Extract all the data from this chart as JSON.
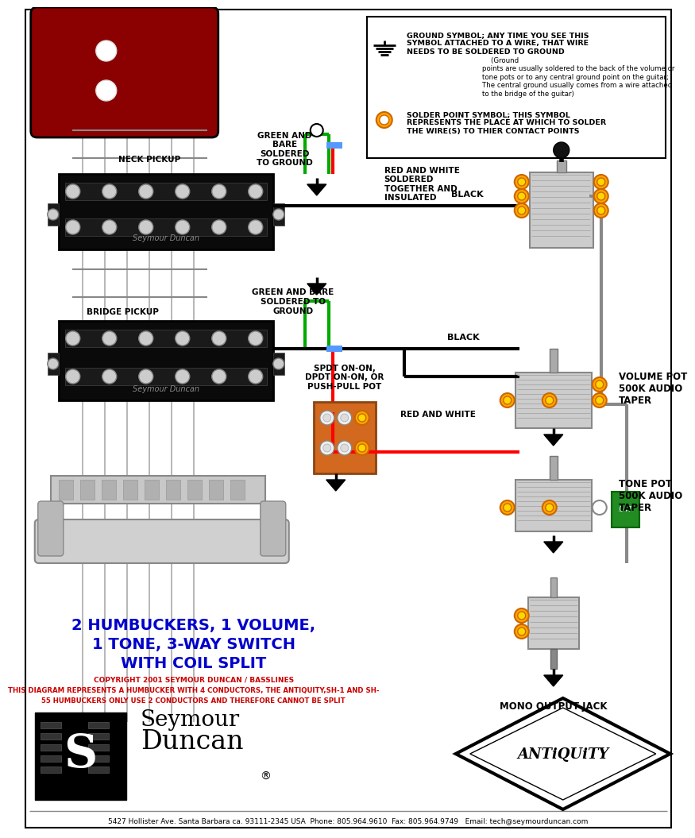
{
  "bg_color": "#ffffff",
  "title_line1": "2 HUMBUCKERS, 1 VOLUME,",
  "title_line2": "1 TONE, 3-WAY SWITCH",
  "title_line3": "WITH COIL SPLIT",
  "title_color": "#0000cc",
  "copyright_text": "COPYRIGHT 2001 SEYMOUR DUNCAN / BASSLINES",
  "copyright_color": "#cc0000",
  "warning_text1": "THIS DIAGRAM REPRESENTS A HUMBUCKER WITH 4 CONDUCTORS, THE ANTIQUITY,SH-1 AND SH-",
  "warning_text2": "55 HUMBUCKERS ONLY USE 2 CONDUCTORS AND THEREFORE CANNOT BE SPLIT",
  "warning_color": "#cc0000",
  "footer_text": "5427 Hollister Ave. Santa Barbara ca. 93111-2345 USA  Phone: 805.964.9610  Fax: 805.964.9749   Email: tech@seymourduncan.com",
  "footer_color": "#000000",
  "label_neck": "NECK PICKUP",
  "label_bridge": "BRIDGE PICKUP",
  "label_green_bare_1": "GREEN AND\nBARE\nSOLDERED\nTO GROUND",
  "label_green_bare_2": "GREEN AND BARE\nSOLDERED TO\nGROUND",
  "label_red_white_1": "RED AND WHITE\nSOLDERED\nTOGETHER AND\nINSULATED",
  "label_red_white_2": "RED AND WHITE",
  "label_black_1": "BLACK",
  "label_black_2": "BLACK",
  "label_volume": "VOLUME POT\n500K AUDIO\nTAPER",
  "label_tone": "TONE POT\n500K AUDIO\nTAPER",
  "label_mono": "MONO OUTPUT JACK",
  "label_spdt": "SPDT ON-ON,\nDPDT ON-ON, OR\nPUSH-PULL POT",
  "guitar_body_color": "#8B0000",
  "strings_color": "#aaaaaa"
}
